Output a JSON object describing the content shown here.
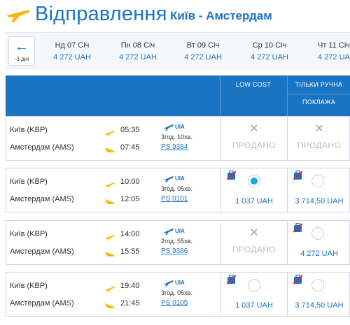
{
  "header": {
    "title": "Відправлення",
    "route": "Київ - Амстердам"
  },
  "date_strip": {
    "prev_label": "-3 дні",
    "dates": [
      {
        "day": "Нд 07 Січ",
        "price": "4 272 UAH"
      },
      {
        "day": "Пн 08 Січ",
        "price": "4 272 UAH"
      },
      {
        "day": "Вт 09 Січ",
        "price": "4 272 UAH"
      },
      {
        "day": "Ср 10 Січ",
        "price": "4 272 UAH"
      },
      {
        "day": "Чт 11 Січ",
        "price": "4 272 UAH"
      }
    ]
  },
  "fare_headers": {
    "low_cost": "LOW COST",
    "hand_luggage_line1": "ТІЛЬКИ РУЧНА",
    "hand_luggage_line2": "ПОКЛАЖА"
  },
  "flights": [
    {
      "from": "Київ (KBP)",
      "to": "Амстердам (AMS)",
      "dep": "05:35",
      "arr": "07:45",
      "airline": "UIA",
      "duration": "3год. 10хв.",
      "flight_no": "PS 9384",
      "fares": [
        {
          "status": "Продано",
          "sold_out": true
        },
        {
          "status": "Продано",
          "sold_out": true
        }
      ]
    },
    {
      "from": "Київ (KBP)",
      "to": "Амстердам (AMS)",
      "dep": "10:00",
      "arr": "12:05",
      "airline": "UIA",
      "duration": "3год. 05хв.",
      "flight_no": "PS 0101",
      "fares": [
        {
          "price": "1 037 UAH",
          "selected": true
        },
        {
          "price": "3 714,50 UAH",
          "selected": false
        }
      ]
    },
    {
      "from": "Київ (KBP)",
      "to": "Амстердам (AMS)",
      "dep": "14:00",
      "arr": "15:55",
      "airline": "UIA",
      "duration": "2год. 55хв.",
      "flight_no": "PS 9386",
      "fares": [
        {
          "status": "Продано",
          "sold_out": true
        },
        {
          "price": "4 272 UAH",
          "selected": false
        }
      ]
    },
    {
      "from": "Київ (KBP)",
      "to": "Амстердам (AMS)",
      "dep": "19:40",
      "arr": "21:45",
      "airline": "UIA",
      "duration": "3год. 05хв.",
      "flight_no": "PS 0105",
      "fares": [
        {
          "price": "1 037 UAH",
          "selected": false
        },
        {
          "price": "3 714,50 UAH",
          "selected": false
        }
      ]
    }
  ],
  "colors": {
    "brand": "#1a74c4",
    "selected": "#1aa6e0",
    "sold": "#b8c0c9",
    "logo": "#f2b90f"
  }
}
